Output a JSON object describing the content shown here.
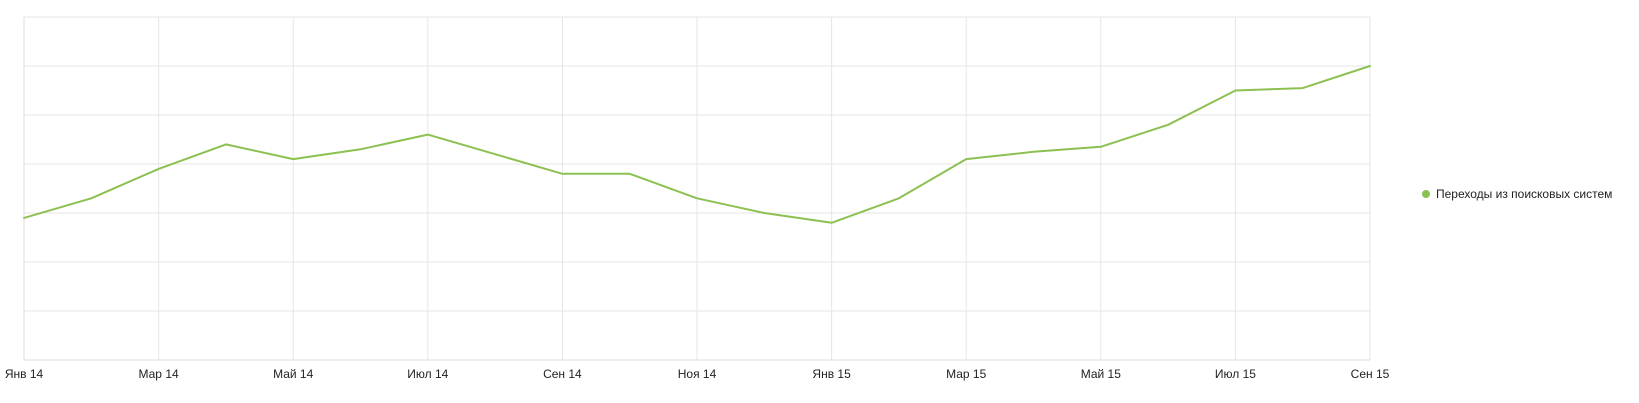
{
  "chart_data": {
    "type": "line",
    "title": "",
    "xlabel": "",
    "ylabel": "",
    "x": [
      "2014-01",
      "2014-02",
      "2014-03",
      "2014-04",
      "2014-05",
      "2014-06",
      "2014-07",
      "2014-08",
      "2014-09",
      "2014-10",
      "2014-11",
      "2014-12",
      "2015-01",
      "2015-02",
      "2015-03",
      "2015-04",
      "2015-05",
      "2015-06",
      "2015-07",
      "2015-08",
      "2015-09"
    ],
    "tick_labels": [
      "Янв 14",
      "Мар 14",
      "Май 14",
      "Июл 14",
      "Сен 14",
      "Ноя 14",
      "Янв 15",
      "Мар 15",
      "Май 15",
      "Июл 15",
      "Сен 15"
    ],
    "tick_every": 2,
    "ylim": [
      0,
      7
    ],
    "y_grid_lines": 7,
    "y_tick_labels_visible": false,
    "grid": true,
    "legend_position": "right",
    "series": [
      {
        "name": "Переходы из поисковых систем",
        "color": "#8cc152",
        "values": [
          2.9,
          3.3,
          3.9,
          4.4,
          4.1,
          4.3,
          4.6,
          4.2,
          3.8,
          3.8,
          3.3,
          3.0,
          2.8,
          3.3,
          4.1,
          4.25,
          4.35,
          4.8,
          5.5,
          5.55,
          6.0
        ]
      }
    ]
  }
}
